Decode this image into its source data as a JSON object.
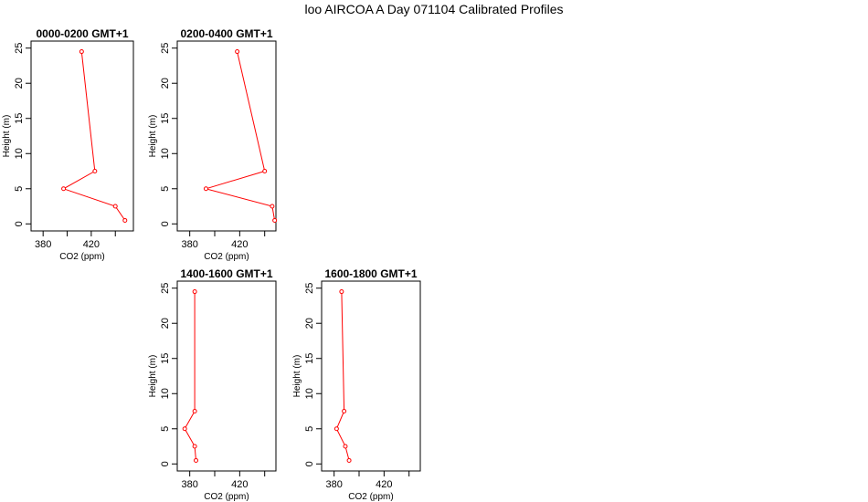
{
  "title": "loo AIRCOA A  Day 071104  Calibrated Profiles",
  "chart_data": [
    {
      "type": "line",
      "title": "0000-0200 GMT+1",
      "xlabel": "CO2 (ppm)",
      "ylabel": "Height (m)",
      "xlim": [
        370,
        455
      ],
      "ylim": [
        -1,
        26
      ],
      "xticks": [
        380,
        420
      ],
      "yticks": [
        0,
        5,
        10,
        15,
        20,
        25
      ],
      "color": "#ff0000",
      "points": [
        [
          448,
          0.5
        ],
        [
          440,
          2.5
        ],
        [
          397,
          5
        ],
        [
          423,
          7.5
        ],
        [
          412,
          24.5
        ]
      ]
    },
    {
      "type": "line",
      "title": "0200-0400 GMT+1",
      "xlabel": "CO2 (ppm)",
      "ylabel": "Height (m)",
      "xlim": [
        370,
        449
      ],
      "ylim": [
        -1,
        26
      ],
      "xticks": [
        380,
        420
      ],
      "yticks": [
        0,
        5,
        10,
        15,
        20,
        25
      ],
      "color": "#ff0000",
      "points": [
        [
          448,
          0.5
        ],
        [
          446,
          2.5
        ],
        [
          393,
          5
        ],
        [
          440,
          7.5
        ],
        [
          418,
          24.5
        ]
      ]
    },
    {
      "type": "line",
      "title": "1400-1600 GMT+1",
      "xlabel": "CO2 (ppm)",
      "ylabel": "Height (m)",
      "xlim": [
        370,
        449
      ],
      "ylim": [
        -1,
        26
      ],
      "xticks": [
        380,
        420
      ],
      "yticks": [
        0,
        5,
        10,
        15,
        20,
        25
      ],
      "color": "#ff0000",
      "points": [
        [
          385,
          0.5
        ],
        [
          384,
          2.5
        ],
        [
          376,
          5
        ],
        [
          384,
          7.5
        ],
        [
          384,
          24.5
        ]
      ]
    },
    {
      "type": "line",
      "title": "1600-1800 GMT+1",
      "xlabel": "CO2 (ppm)",
      "ylabel": "Height (m)",
      "xlim": [
        370,
        449
      ],
      "ylim": [
        -1,
        26
      ],
      "xticks": [
        380,
        420
      ],
      "yticks": [
        0,
        5,
        10,
        15,
        20,
        25
      ],
      "color": "#ff0000",
      "points": [
        [
          392,
          0.5
        ],
        [
          389,
          2.5
        ],
        [
          382,
          5
        ],
        [
          388,
          7.5
        ],
        [
          386,
          24.5
        ]
      ]
    }
  ]
}
